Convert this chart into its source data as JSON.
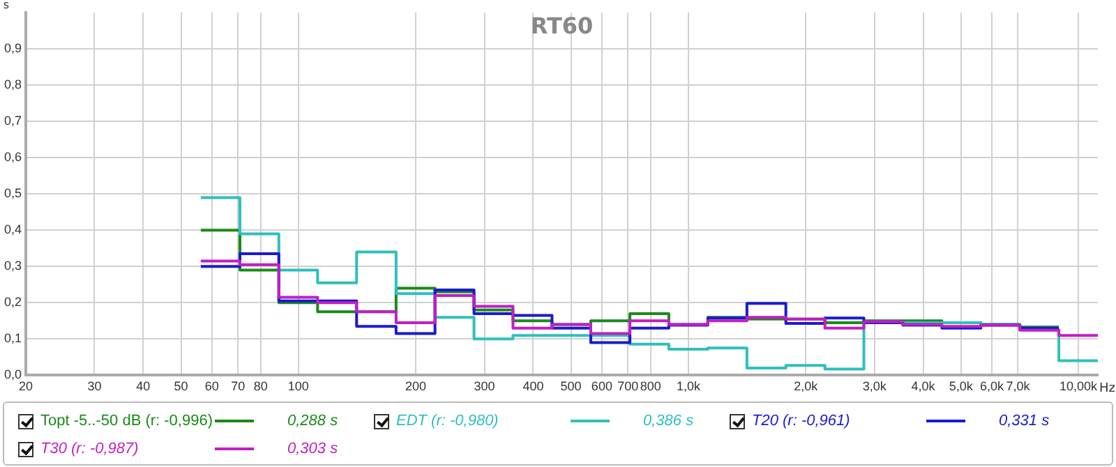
{
  "chart_data": {
    "type": "step",
    "title": "RT60",
    "xlabel": "Hz",
    "ylabel": "s",
    "log": "x",
    "grid": true,
    "legend": "bottom",
    "marker": "none",
    "line_style": "solid",
    "x": [
      56.2,
      70.8,
      89.1,
      112,
      141,
      178,
      224,
      282,
      355,
      447,
      562,
      708,
      891,
      1122,
      1413,
      1778,
      2239,
      2818,
      3548,
      4467,
      5623,
      7079,
      8913,
      11220
    ],
    "xlim": [
      20,
      11220
    ],
    "xticks": [
      20,
      30,
      40,
      50,
      60,
      70,
      80,
      100,
      200,
      300,
      400,
      500,
      600,
      700,
      800,
      {
        "value": 1000,
        "label": "1,0k"
      },
      {
        "value": 2000,
        "label": "2,0k"
      },
      {
        "value": 3000,
        "label": "3,0k"
      },
      {
        "value": 4000,
        "label": "4,0k"
      },
      {
        "value": 5000,
        "label": "5,0k"
      },
      {
        "value": 6000,
        "label": "6,0k"
      },
      {
        "value": 7000,
        "label": "7,0k"
      },
      {
        "value": 10000,
        "label": "10,00k"
      }
    ],
    "ylim": [
      0,
      1
    ],
    "yticks": [
      {
        "value": 0,
        "label": "0,0"
      },
      {
        "value": 0.1,
        "label": "0,1"
      },
      {
        "value": 0.2,
        "label": "0,2"
      },
      {
        "value": 0.3,
        "label": "0,3"
      },
      {
        "value": 0.4,
        "label": "0,4"
      },
      {
        "value": 0.5,
        "label": "0,5"
      },
      {
        "value": 0.6,
        "label": "0,6"
      },
      {
        "value": 0.7,
        "label": "0,7"
      },
      {
        "value": 0.8,
        "label": "0,8"
      },
      {
        "value": 0.9,
        "label": "0,9"
      }
    ],
    "series": [
      {
        "name": "Topt -5..-50 dB (r: -0,996)",
        "color": "#1a8a1a",
        "x": [
          56.2,
          70.8,
          89.1,
          112,
          141,
          178,
          224,
          282,
          355,
          447,
          562,
          708,
          891,
          1122,
          1413,
          1778,
          2239,
          2818,
          3548,
          4467,
          5623,
          7079,
          8913
        ],
        "values": [
          0.4,
          0.29,
          0.2,
          0.175,
          0.175,
          0.24,
          0.23,
          0.18,
          0.15,
          0.14,
          0.15,
          0.17,
          0.14,
          0.16,
          0.155,
          0.155,
          0.145,
          0.15,
          0.15,
          0.145,
          0.14,
          0.133,
          0.133
        ]
      },
      {
        "name": "EDT (r: -0,980)",
        "color": "#2ebfbf",
        "values": [
          0.49,
          0.39,
          0.29,
          0.255,
          0.34,
          0.225,
          0.16,
          0.1,
          0.11,
          0.11,
          0.11,
          0.086,
          0.072,
          0.075,
          0.02,
          0.027,
          0.017,
          0.145,
          0.145,
          0.145,
          0.14,
          0.125,
          0.04,
          0.04
        ]
      },
      {
        "name": "T20 (r: -0,961)",
        "color": "#1a1ad0",
        "x": [
          56.2,
          70.8,
          89.1,
          112,
          141,
          178,
          224,
          282,
          355,
          447,
          562,
          708,
          891,
          1122,
          1413,
          1778,
          2239,
          2818,
          3548,
          4467,
          5623,
          7079,
          8913
        ],
        "values": [
          0.3,
          0.335,
          0.205,
          0.205,
          0.135,
          0.115,
          0.235,
          0.17,
          0.165,
          0.13,
          0.09,
          0.13,
          0.138,
          0.158,
          0.198,
          0.143,
          0.158,
          0.145,
          0.138,
          0.13,
          0.138,
          0.13,
          0.13
        ]
      },
      {
        "name": "T30 (r: -0,987)",
        "color": "#c21ec2",
        "values": [
          0.315,
          0.305,
          0.215,
          0.2,
          0.175,
          0.145,
          0.22,
          0.19,
          0.13,
          0.14,
          0.115,
          0.15,
          0.14,
          0.15,
          0.16,
          0.155,
          0.13,
          0.148,
          0.14,
          0.135,
          0.138,
          0.124,
          0.11,
          0.11
        ]
      }
    ],
    "annotations": [
      "0,288 s",
      "0,386 s",
      "0,331 s",
      "0,303 s"
    ]
  }
}
